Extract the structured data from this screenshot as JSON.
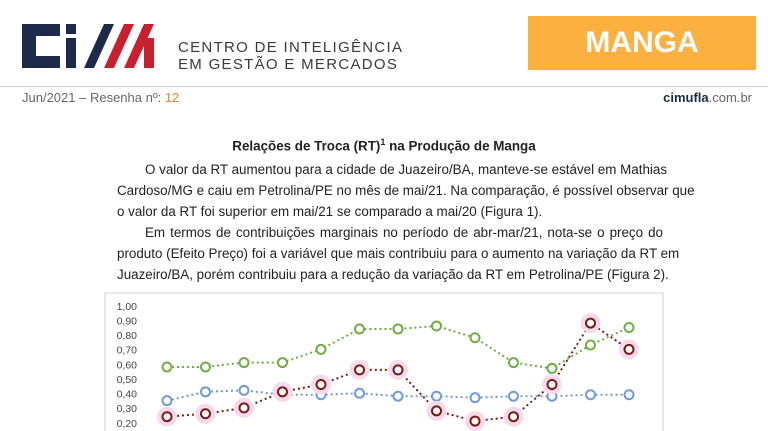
{
  "header": {
    "org_line1": "CENTRO DE INTELIGÊNCIA",
    "org_line2": "EM GESTÃO E MERCADOS",
    "product": "MANGA",
    "date_label": "Jun/2021 – Resenha nº:",
    "issue": "12",
    "site_bold": "cimufla",
    "site_rest": ".com.br"
  },
  "article": {
    "title": "Relações de Troca (RT)",
    "title_sup": "1",
    "title_rest": " na Produção de Manga",
    "paragraphs": [
      [
        "O valor da RT aumentou para a cidade de Juazeiro/BA, manteve-se estável em Mathias",
        "Cardoso/MG e caiu em Petrolina/PE no mês de mai/21. Na comparação, é possível observar que",
        "o valor da RT foi superior em mai/21 se comparado a mai/20 (Figura 1)."
      ],
      [
        "Em termos de contribuições marginais no período de abr-mar/21, nota-se o preço do",
        "produto (Efeito Preço) foi a variável que mais contribuiu para o aumento na variação da RT em",
        "Juazeiro/BA, porém contribuiu para a redução da variação da RT em Petrolina/PE (Figura 2)."
      ]
    ]
  },
  "chart_data": {
    "type": "line",
    "categories": [
      null,
      null,
      null,
      null,
      null,
      null,
      null,
      null,
      null,
      null,
      null,
      null,
      null
    ],
    "series": [
      {
        "color": "#70ad47",
        "values": [
          0.59,
          0.59,
          0.62,
          0.62,
          0.71,
          0.85,
          0.85,
          0.87,
          0.79,
          0.62,
          0.58,
          0.74,
          0.86
        ]
      },
      {
        "color": "#6f9bd6",
        "values": [
          0.36,
          0.42,
          0.43,
          0.4,
          0.4,
          0.41,
          0.39,
          0.39,
          0.38,
          0.39,
          0.39,
          0.4,
          0.4
        ]
      },
      {
        "color": "#7b1c12",
        "values": [
          0.25,
          0.27,
          0.31,
          0.42,
          0.47,
          0.57,
          0.57,
          0.29,
          0.22,
          0.25,
          0.47,
          0.89,
          0.71
        ]
      }
    ],
    "ylim": [
      0.2,
      1.0
    ],
    "yticks": [
      {
        "value": 0.2,
        "label": "0,20"
      },
      {
        "value": 0.3,
        "label": "0,30"
      },
      {
        "value": 0.4,
        "label": "0,40"
      },
      {
        "value": 0.5,
        "label": "0,50"
      },
      {
        "value": 0.6,
        "label": "0,60"
      },
      {
        "value": 0.7,
        "label": "0,70"
      },
      {
        "value": 0.8,
        "label": "0,80"
      },
      {
        "value": 0.9,
        "label": "0,90"
      },
      {
        "value": 1.0,
        "label": "1,00"
      }
    ]
  }
}
